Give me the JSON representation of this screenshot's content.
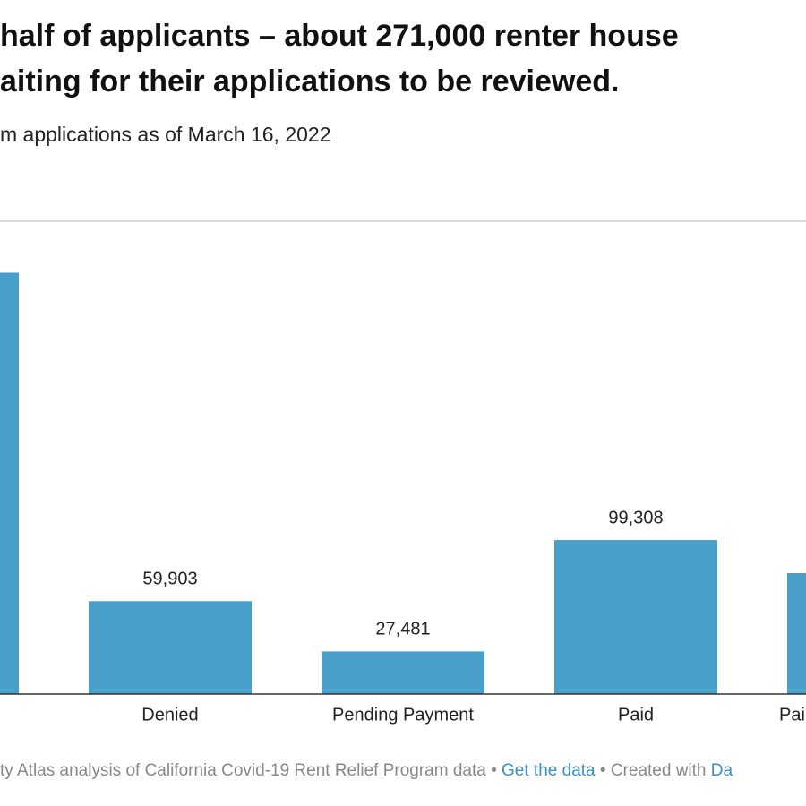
{
  "chart_data": {
    "type": "bar",
    "title_lines": [
      "half of applicants – about 271,000 renter house",
      "aiting for their applications to be reviewed."
    ],
    "subtitle": "m applications as of March 16, 2022",
    "categories": [
      null,
      "Denied",
      "Pending Payment",
      "Paid",
      "Pai"
    ],
    "values": [
      271800,
      59903,
      27481,
      99308,
      78000
    ],
    "value_labels": [
      null,
      "59,903",
      "27,481",
      "99,308",
      null
    ],
    "color": "#4a9fca",
    "ylim": [
      0,
      305000
    ],
    "footer": {
      "source": "ty Atlas analysis of California Covid-19 Rent Relief Program data",
      "separator": "•",
      "link": "Get the data",
      "credit": "Created with",
      "credit_link": "Da"
    }
  }
}
